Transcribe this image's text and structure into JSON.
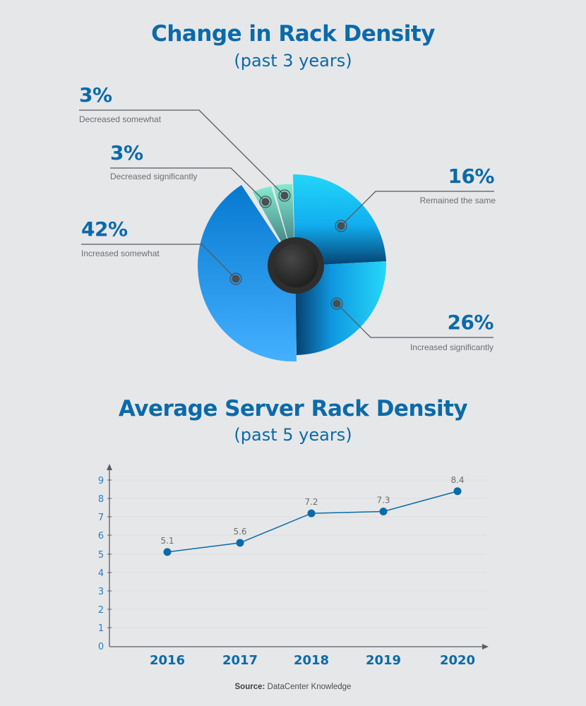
{
  "pie_section": {
    "title": "Change in Rack Density",
    "subtitle": "(past 3 years)"
  },
  "line_section": {
    "title": "Average Server Rack Density",
    "subtitle": "(past 5 years)"
  },
  "source": {
    "label": "Source:",
    "text": "DataCenter Knowledge"
  },
  "colors": {
    "title_blue": "#0b6aa9",
    "background": "#e6e7e9",
    "line_blue": "#0b6aa9",
    "slice_light_cyan": "#22d4f7",
    "slice_blue": "#0a8ae6",
    "slice_mint": "#7fe3c6",
    "hub_dark": "#2b2b2b"
  },
  "chart_data": [
    {
      "type": "pie",
      "title": "Change in Rack Density",
      "subtitle": "(past 3 years)",
      "categories": [
        "Remained the same",
        "Increased significantly",
        "Increased somewhat",
        "Decreased significantly",
        "Decreased somewhat"
      ],
      "values": [
        16,
        26,
        42,
        3,
        3
      ],
      "labels": [
        {
          "pct": "16%",
          "text": "Remained the same"
        },
        {
          "pct": "26%",
          "text": "Increased significantly"
        },
        {
          "pct": "42%",
          "text": "Increased somewhat"
        },
        {
          "pct": "3%",
          "text": "Decreased significantly"
        },
        {
          "pct": "3%",
          "text": "Decreased somewhat"
        }
      ],
      "style": "donut with varying slice radii and dark center hub"
    },
    {
      "type": "line",
      "title": "Average Server Rack Density",
      "subtitle": "(past 5 years)",
      "categories": [
        "2016",
        "2017",
        "2018",
        "2019",
        "2020"
      ],
      "values": [
        5.1,
        5.6,
        7.2,
        7.3,
        8.4
      ],
      "data_labels": [
        "5.1",
        "5.6",
        "7.2",
        "7.3",
        "8.4"
      ],
      "xlabel": "",
      "ylabel": "",
      "yticks": [
        "0",
        "1",
        "2",
        "3",
        "4",
        "5",
        "6",
        "7",
        "8",
        "9"
      ],
      "ylim": [
        0,
        9
      ],
      "grid": true,
      "legend": "none"
    }
  ]
}
